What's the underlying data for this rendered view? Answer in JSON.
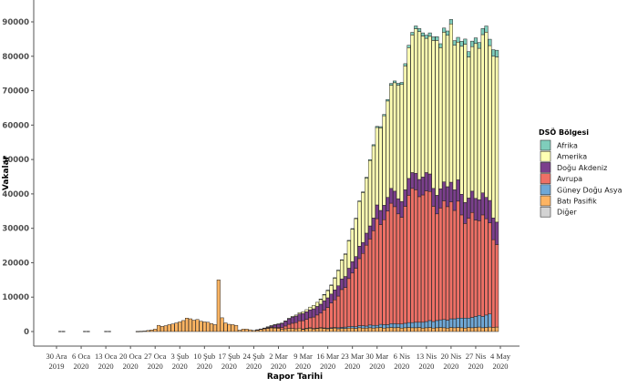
{
  "chart_data": {
    "type": "bar",
    "stacked": true,
    "title": "",
    "xlabel": "Rapor Tarihi",
    "ylabel": "Vakalar",
    "ylim": [
      -4500,
      95000
    ],
    "yticks": [
      0,
      10000,
      20000,
      30000,
      40000,
      50000,
      60000,
      70000,
      80000,
      90000
    ],
    "ytick_labels": [
      "0",
      "10000",
      "20000",
      "30000",
      "40000",
      "50000",
      "60000",
      "70000",
      "80000",
      "90000"
    ],
    "xtick_labels": [
      [
        "30 Ara",
        "2019"
      ],
      [
        "6 Oca",
        "2020"
      ],
      [
        "13 Oca",
        "2020"
      ],
      [
        "20 Oca",
        "2020"
      ],
      [
        "27 Oca",
        "2020"
      ],
      [
        "3 Şub",
        "2020"
      ],
      [
        "10 Şub",
        "2020"
      ],
      [
        "17 Şub",
        "2020"
      ],
      [
        "24 Şub",
        "2020"
      ],
      [
        "2 Mar",
        "2020"
      ],
      [
        "9 Mar",
        "2020"
      ],
      [
        "16 Mar",
        "2020"
      ],
      [
        "23 Mar",
        "2020"
      ],
      [
        "30 Mar",
        "2020"
      ],
      [
        "6 Nis",
        "2020"
      ],
      [
        "13 Nis",
        "2020"
      ],
      [
        "20 Nis",
        "2020"
      ],
      [
        "27 Nis",
        "2020"
      ],
      [
        "4 May",
        "2020"
      ]
    ],
    "grid": false,
    "legend": {
      "title": "DSÖ Bölgesi",
      "position": "right",
      "entries": [
        {
          "name": "Afrika",
          "color": "#7fcdbb"
        },
        {
          "name": "Amerika",
          "color": "#ffffb3"
        },
        {
          "name": "Doğu Akdeniz",
          "color": "#7b3f8c"
        },
        {
          "name": "Avrupa",
          "color": "#ee7066"
        },
        {
          "name": "Güney Doğu Asya",
          "color": "#6fa8d6"
        },
        {
          "name": "Batı Pasifik",
          "color": "#fdb462"
        },
        {
          "name": "Diğer",
          "color": "#d3d3d3"
        }
      ]
    },
    "stack_order_bottom_to_top": [
      "Batı Pasifik",
      "Güney Doğu Asya",
      "Avrupa",
      "Doğu Akdeniz",
      "Amerika",
      "Afrika",
      "Diğer"
    ],
    "start_day_offset_from_30_Ara_2019": 1,
    "series": [
      {
        "name": "Batı Pasifik",
        "values": [
          0,
          0,
          0,
          0,
          0,
          0,
          0,
          0,
          0,
          0,
          0,
          0,
          0,
          0,
          0,
          0,
          0,
          0,
          0,
          0,
          0,
          0,
          50,
          100,
          150,
          300,
          450,
          700,
          1800,
          1500,
          1700,
          2000,
          2200,
          2500,
          2800,
          3200,
          3900,
          3700,
          3300,
          3500,
          3000,
          2800,
          2700,
          2300,
          2000,
          15000,
          4000,
          2500,
          2100,
          2000,
          1800,
          400,
          700,
          700,
          500,
          300,
          500,
          700,
          900,
          1000,
          1100,
          1000,
          900,
          700,
          800,
          900,
          900,
          800,
          1000,
          700,
          900,
          1000,
          800,
          900,
          1000,
          900,
          800,
          900,
          1000,
          800,
          900,
          900,
          1000,
          1000,
          900,
          1100,
          1000,
          1000,
          1100,
          1000,
          1100,
          1200,
          1000,
          1100,
          1200,
          1100,
          1200,
          1000,
          1100,
          1200,
          1100,
          1100,
          1200,
          1000,
          1100,
          1200,
          1000,
          1100,
          1200,
          1100,
          1000,
          1200,
          1100,
          1200,
          1100,
          1000,
          1200,
          1100,
          1200,
          1300,
          1100,
          1200,
          1300,
          1200,
          1300
        ]
      },
      {
        "name": "Güney Doğu Asya",
        "values": [
          0,
          0,
          0,
          0,
          0,
          0,
          0,
          0,
          0,
          0,
          0,
          0,
          0,
          0,
          0,
          0,
          0,
          0,
          0,
          0,
          0,
          0,
          0,
          0,
          0,
          0,
          0,
          0,
          0,
          0,
          0,
          0,
          0,
          0,
          0,
          0,
          0,
          0,
          0,
          0,
          0,
          0,
          0,
          0,
          0,
          0,
          0,
          0,
          0,
          0,
          0,
          0,
          0,
          0,
          0,
          0,
          0,
          0,
          0,
          0,
          0,
          0,
          0,
          0,
          0,
          0,
          0,
          0,
          0,
          50,
          50,
          100,
          100,
          100,
          150,
          150,
          200,
          200,
          200,
          300,
          300,
          400,
          400,
          500,
          500,
          600,
          700,
          600,
          800,
          800,
          700,
          900,
          1000,
          900,
          1100,
          1200,
          1000,
          1200,
          1300,
          1400,
          1500,
          1600,
          1500,
          1700,
          1800,
          2000,
          1900,
          2100,
          2200,
          2400,
          2300,
          2500,
          2600,
          2700,
          2800,
          2900,
          2700,
          3000,
          3200,
          3400,
          3300,
          3600,
          3800
        ]
      },
      {
        "name": "Avrupa",
        "values": [
          0,
          0,
          0,
          0,
          0,
          0,
          0,
          0,
          0,
          0,
          0,
          0,
          0,
          0,
          0,
          0,
          0,
          0,
          0,
          0,
          0,
          0,
          0,
          0,
          0,
          0,
          0,
          0,
          0,
          0,
          0,
          0,
          0,
          0,
          0,
          0,
          0,
          0,
          0,
          0,
          0,
          0,
          0,
          0,
          0,
          0,
          0,
          0,
          0,
          0,
          0,
          0,
          0,
          0,
          0,
          0,
          0,
          0,
          20,
          50,
          100,
          200,
          300,
          500,
          800,
          1200,
          1500,
          1800,
          2100,
          2400,
          2600,
          2900,
          3300,
          3800,
          4200,
          5200,
          6000,
          7200,
          8000,
          9200,
          11000,
          11500,
          14000,
          15500,
          17000,
          19500,
          21000,
          23500,
          25000,
          27500,
          31000,
          29000,
          30500,
          33000,
          35000,
          34000,
          32000,
          31000,
          34000,
          37000,
          39000,
          38500,
          36500,
          37000,
          38000,
          37500,
          33500,
          31000,
          32500,
          34500,
          33000,
          34000,
          31500,
          34000,
          30000,
          27500,
          29000,
          30500,
          28000,
          27500,
          29500,
          28000,
          26500,
          25500,
          24000
        ]
      },
      {
        "name": "Doğu Akdeniz",
        "values": [
          0,
          0,
          0,
          0,
          0,
          0,
          0,
          0,
          0,
          0,
          0,
          0,
          0,
          0,
          0,
          0,
          0,
          0,
          0,
          0,
          0,
          0,
          0,
          0,
          0,
          0,
          0,
          0,
          0,
          0,
          0,
          0,
          0,
          0,
          0,
          0,
          0,
          0,
          0,
          0,
          0,
          0,
          0,
          0,
          0,
          0,
          0,
          0,
          0,
          0,
          0,
          0,
          0,
          0,
          0,
          0,
          10,
          50,
          100,
          300,
          500,
          800,
          1000,
          1200,
          1400,
          1600,
          1800,
          1900,
          2000,
          2100,
          2200,
          2300,
          2400,
          2500,
          2600,
          2700,
          2800,
          2600,
          2900,
          3000,
          3100,
          3200,
          3000,
          3300,
          3400,
          3600,
          3200,
          3500,
          3800,
          3700,
          4000,
          4100,
          4200,
          4000,
          4300,
          4500,
          4400,
          4600,
          4800,
          4900,
          4600,
          4800,
          5000,
          5200,
          5300,
          5100,
          5200,
          5400,
          5600,
          5500,
          5800,
          5700,
          6000,
          6200,
          6000,
          6100,
          5900,
          6200,
          6300,
          6100,
          6400,
          6200,
          6500,
          6300,
          6500
        ]
      },
      {
        "name": "Amerika",
        "values": [
          0,
          0,
          0,
          0,
          0,
          0,
          0,
          0,
          0,
          0,
          0,
          0,
          0,
          0,
          0,
          0,
          0,
          0,
          0,
          0,
          0,
          0,
          0,
          0,
          0,
          0,
          0,
          0,
          0,
          0,
          0,
          0,
          0,
          0,
          0,
          0,
          0,
          0,
          0,
          0,
          0,
          0,
          0,
          0,
          0,
          0,
          0,
          0,
          0,
          0,
          0,
          0,
          0,
          0,
          0,
          0,
          0,
          0,
          0,
          10,
          20,
          30,
          50,
          80,
          100,
          150,
          200,
          300,
          400,
          500,
          600,
          800,
          1000,
          1200,
          1500,
          1800,
          2200,
          2600,
          3500,
          4500,
          5500,
          6500,
          8000,
          9500,
          11000,
          13000,
          14500,
          16000,
          19000,
          21000,
          22500,
          24000,
          26000,
          28000,
          30000,
          31500,
          33000,
          34000,
          36000,
          38000,
          40000,
          42000,
          43000,
          41000,
          39000,
          40000,
          43000,
          45000,
          41000,
          43500,
          44000,
          46000,
          42000,
          40000,
          43000,
          46000,
          41000,
          42000,
          45000,
          44000,
          46000,
          48000,
          45000,
          47000,
          48000,
          49000,
          48500
        ]
      },
      {
        "name": "Afrika",
        "values": [
          0,
          0,
          0,
          0,
          0,
          0,
          0,
          0,
          0,
          0,
          0,
          0,
          0,
          0,
          0,
          0,
          0,
          0,
          0,
          0,
          0,
          0,
          0,
          0,
          0,
          0,
          0,
          0,
          0,
          0,
          0,
          0,
          0,
          0,
          0,
          0,
          0,
          0,
          0,
          0,
          0,
          0,
          0,
          0,
          0,
          0,
          0,
          0,
          0,
          0,
          0,
          0,
          0,
          0,
          0,
          0,
          0,
          0,
          0,
          0,
          0,
          0,
          0,
          0,
          0,
          0,
          0,
          0,
          0,
          0,
          0,
          0,
          0,
          0,
          10,
          10,
          20,
          30,
          40,
          50,
          60,
          80,
          100,
          120,
          150,
          180,
          200,
          220,
          250,
          300,
          320,
          350,
          400,
          450,
          500,
          520,
          550,
          600,
          650,
          700,
          750,
          800,
          850,
          900,
          950,
          1000,
          1050,
          1100,
          1150,
          1200,
          1250,
          1300,
          1350,
          1400,
          1450,
          1500,
          1550,
          1600,
          1650,
          1700,
          1750,
          1800,
          1850,
          1900,
          1950
        ]
      },
      {
        "name": "Diğer",
        "values": [
          0,
          0,
          0,
          0,
          0,
          0,
          0,
          0,
          0,
          0,
          0,
          0,
          0,
          0,
          0,
          0,
          0,
          0,
          0,
          0,
          0,
          0,
          0,
          0,
          0,
          0,
          0,
          0,
          0,
          0,
          0,
          0,
          0,
          0,
          0,
          0,
          0,
          0,
          0,
          0,
          0,
          0,
          0,
          0,
          0,
          0,
          0,
          0,
          0,
          0,
          0,
          0,
          0,
          0,
          0,
          0,
          0,
          0,
          0,
          0,
          0,
          0,
          0,
          0,
          0,
          0,
          0,
          0,
          0,
          0,
          0,
          0,
          0,
          0,
          0,
          0,
          0,
          0,
          0,
          0,
          0,
          0,
          0,
          0,
          0,
          0,
          0,
          0,
          0,
          0,
          0,
          0,
          0,
          0,
          0,
          0,
          0,
          0,
          0,
          0,
          0,
          0,
          0,
          0,
          0,
          0,
          0,
          0,
          0,
          0,
          0,
          0,
          0,
          0,
          0,
          0,
          0,
          0,
          0,
          0,
          0,
          0,
          0,
          0,
          0,
          0,
          0
        ]
      }
    ],
    "tiny_marks_early": [
      1,
      2,
      8,
      9,
      14,
      15
    ]
  }
}
